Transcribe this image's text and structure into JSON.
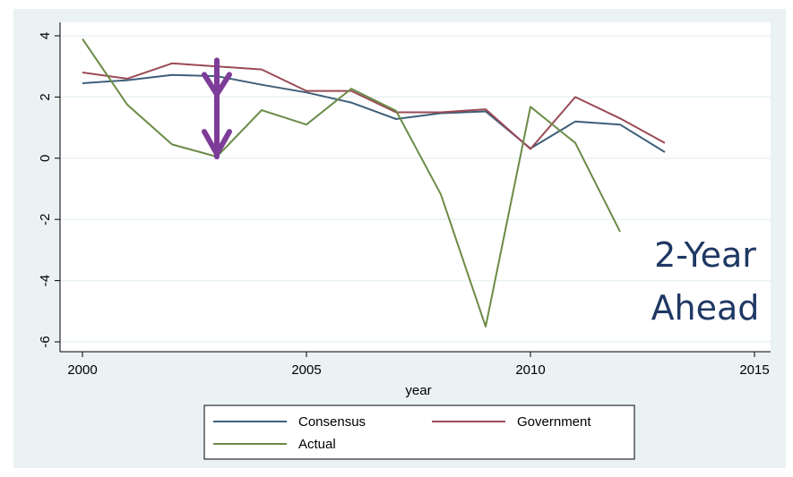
{
  "chart_data": {
    "type": "line",
    "title": "",
    "xlabel": "year",
    "ylabel": "",
    "xlim": [
      2000,
      2015
    ],
    "ylim": [
      -6,
      4
    ],
    "xticks": [
      2000,
      2005,
      2010,
      2015
    ],
    "yticks": [
      -6,
      -4,
      -2,
      0,
      2,
      4
    ],
    "xtick_labels": [
      "2000",
      "2005",
      "2010",
      "2015"
    ],
    "ytick_labels": [
      "-6",
      "-4",
      "-2",
      "0",
      "2",
      "4"
    ],
    "grid": true,
    "legend_position": "bottom",
    "series": [
      {
        "name": "Consensus",
        "color": "#3e5f7a",
        "x": [
          2000,
          2001,
          2002,
          2003,
          2004,
          2005,
          2006,
          2007,
          2008,
          2009,
          2010,
          2011,
          2012,
          2013
        ],
        "y": [
          2.45,
          2.55,
          2.72,
          2.68,
          2.4,
          2.15,
          1.82,
          1.28,
          1.47,
          1.53,
          0.32,
          1.2,
          1.1,
          0.2
        ]
      },
      {
        "name": "Government",
        "color": "#9a4a55",
        "x": [
          2000,
          2001,
          2002,
          2003,
          2004,
          2005,
          2006,
          2007,
          2008,
          2009,
          2010,
          2011,
          2012,
          2013
        ],
        "y": [
          2.8,
          2.6,
          3.1,
          3.0,
          2.9,
          2.2,
          2.2,
          1.5,
          1.5,
          1.6,
          0.3,
          2.0,
          1.3,
          0.5
        ]
      },
      {
        "name": "Actual",
        "color": "#6b8b47",
        "x": [
          2000,
          2001,
          2002,
          2003,
          2004,
          2005,
          2006,
          2007,
          2008,
          2009,
          2010,
          2011,
          2012
        ],
        "y": [
          3.9,
          1.75,
          0.45,
          0.05,
          1.57,
          1.1,
          2.27,
          1.55,
          -1.18,
          -5.5,
          1.68,
          0.5,
          -2.4
        ]
      }
    ],
    "annotations": {
      "label_lines": [
        "2-Year",
        "Ahead"
      ],
      "label_color": "#1f3864",
      "arrow": {
        "x": 2003,
        "y_from": 3.2,
        "y_to": 0.05,
        "color": "#7d3c98"
      }
    },
    "colors": {
      "outer_background": "#eaf2f3",
      "plot_background": "#ffffff",
      "grid": "#eaf2f3"
    }
  }
}
